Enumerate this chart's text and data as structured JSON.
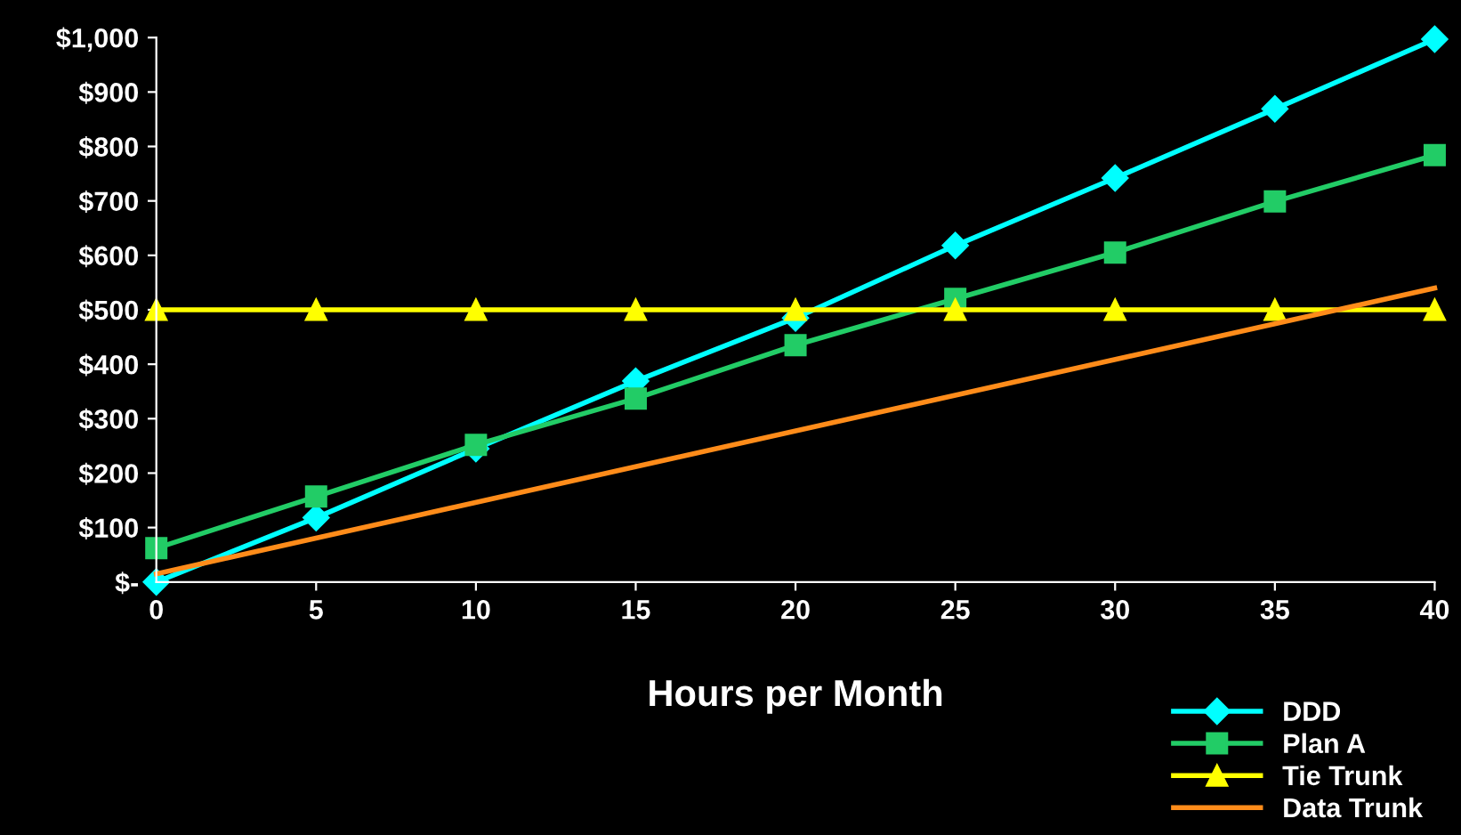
{
  "chart_data": {
    "type": "line",
    "xlabel": "Hours per Month",
    "x": [
      0,
      5,
      10,
      15,
      20,
      25,
      30,
      35,
      40
    ],
    "series": [
      {
        "name": "DDD",
        "color": "#00ffff",
        "values": [
          0,
          118,
          245,
          369,
          485,
          618,
          742,
          869,
          997
        ],
        "marker": "diamond"
      },
      {
        "name": "Plan A",
        "color": "#22cc66",
        "values": [
          62,
          157,
          252,
          337,
          435,
          520,
          605,
          699,
          784
        ],
        "marker": "square"
      },
      {
        "name": "Tie Trunk",
        "color": "#ffff00",
        "values": [
          500,
          500,
          500,
          500,
          500,
          500,
          500,
          500,
          500
        ],
        "marker": "triangle"
      },
      {
        "name": "Data Trunk",
        "color": "#ff8c1a",
        "x": [
          0,
          40
        ],
        "values": [
          15,
          540
        ],
        "marker": "none"
      }
    ],
    "xlim": [
      0,
      40
    ],
    "xticks": [
      0,
      5,
      10,
      15,
      20,
      25,
      30,
      35,
      40
    ],
    "ylim": [
      0,
      1000
    ],
    "yticks": [
      {
        "value": 0,
        "label": "$-"
      },
      {
        "value": 100,
        "label": "$100"
      },
      {
        "value": 200,
        "label": "$200"
      },
      {
        "value": 300,
        "label": "$300"
      },
      {
        "value": 400,
        "label": "$400"
      },
      {
        "value": 500,
        "label": "$500"
      },
      {
        "value": 600,
        "label": "$600"
      },
      {
        "value": 700,
        "label": "$700"
      },
      {
        "value": 800,
        "label": "$800"
      },
      {
        "value": 900,
        "label": "$900"
      },
      {
        "value": 1000,
        "label": "$1,000"
      }
    ],
    "grid": false,
    "legend": "bottom right"
  }
}
